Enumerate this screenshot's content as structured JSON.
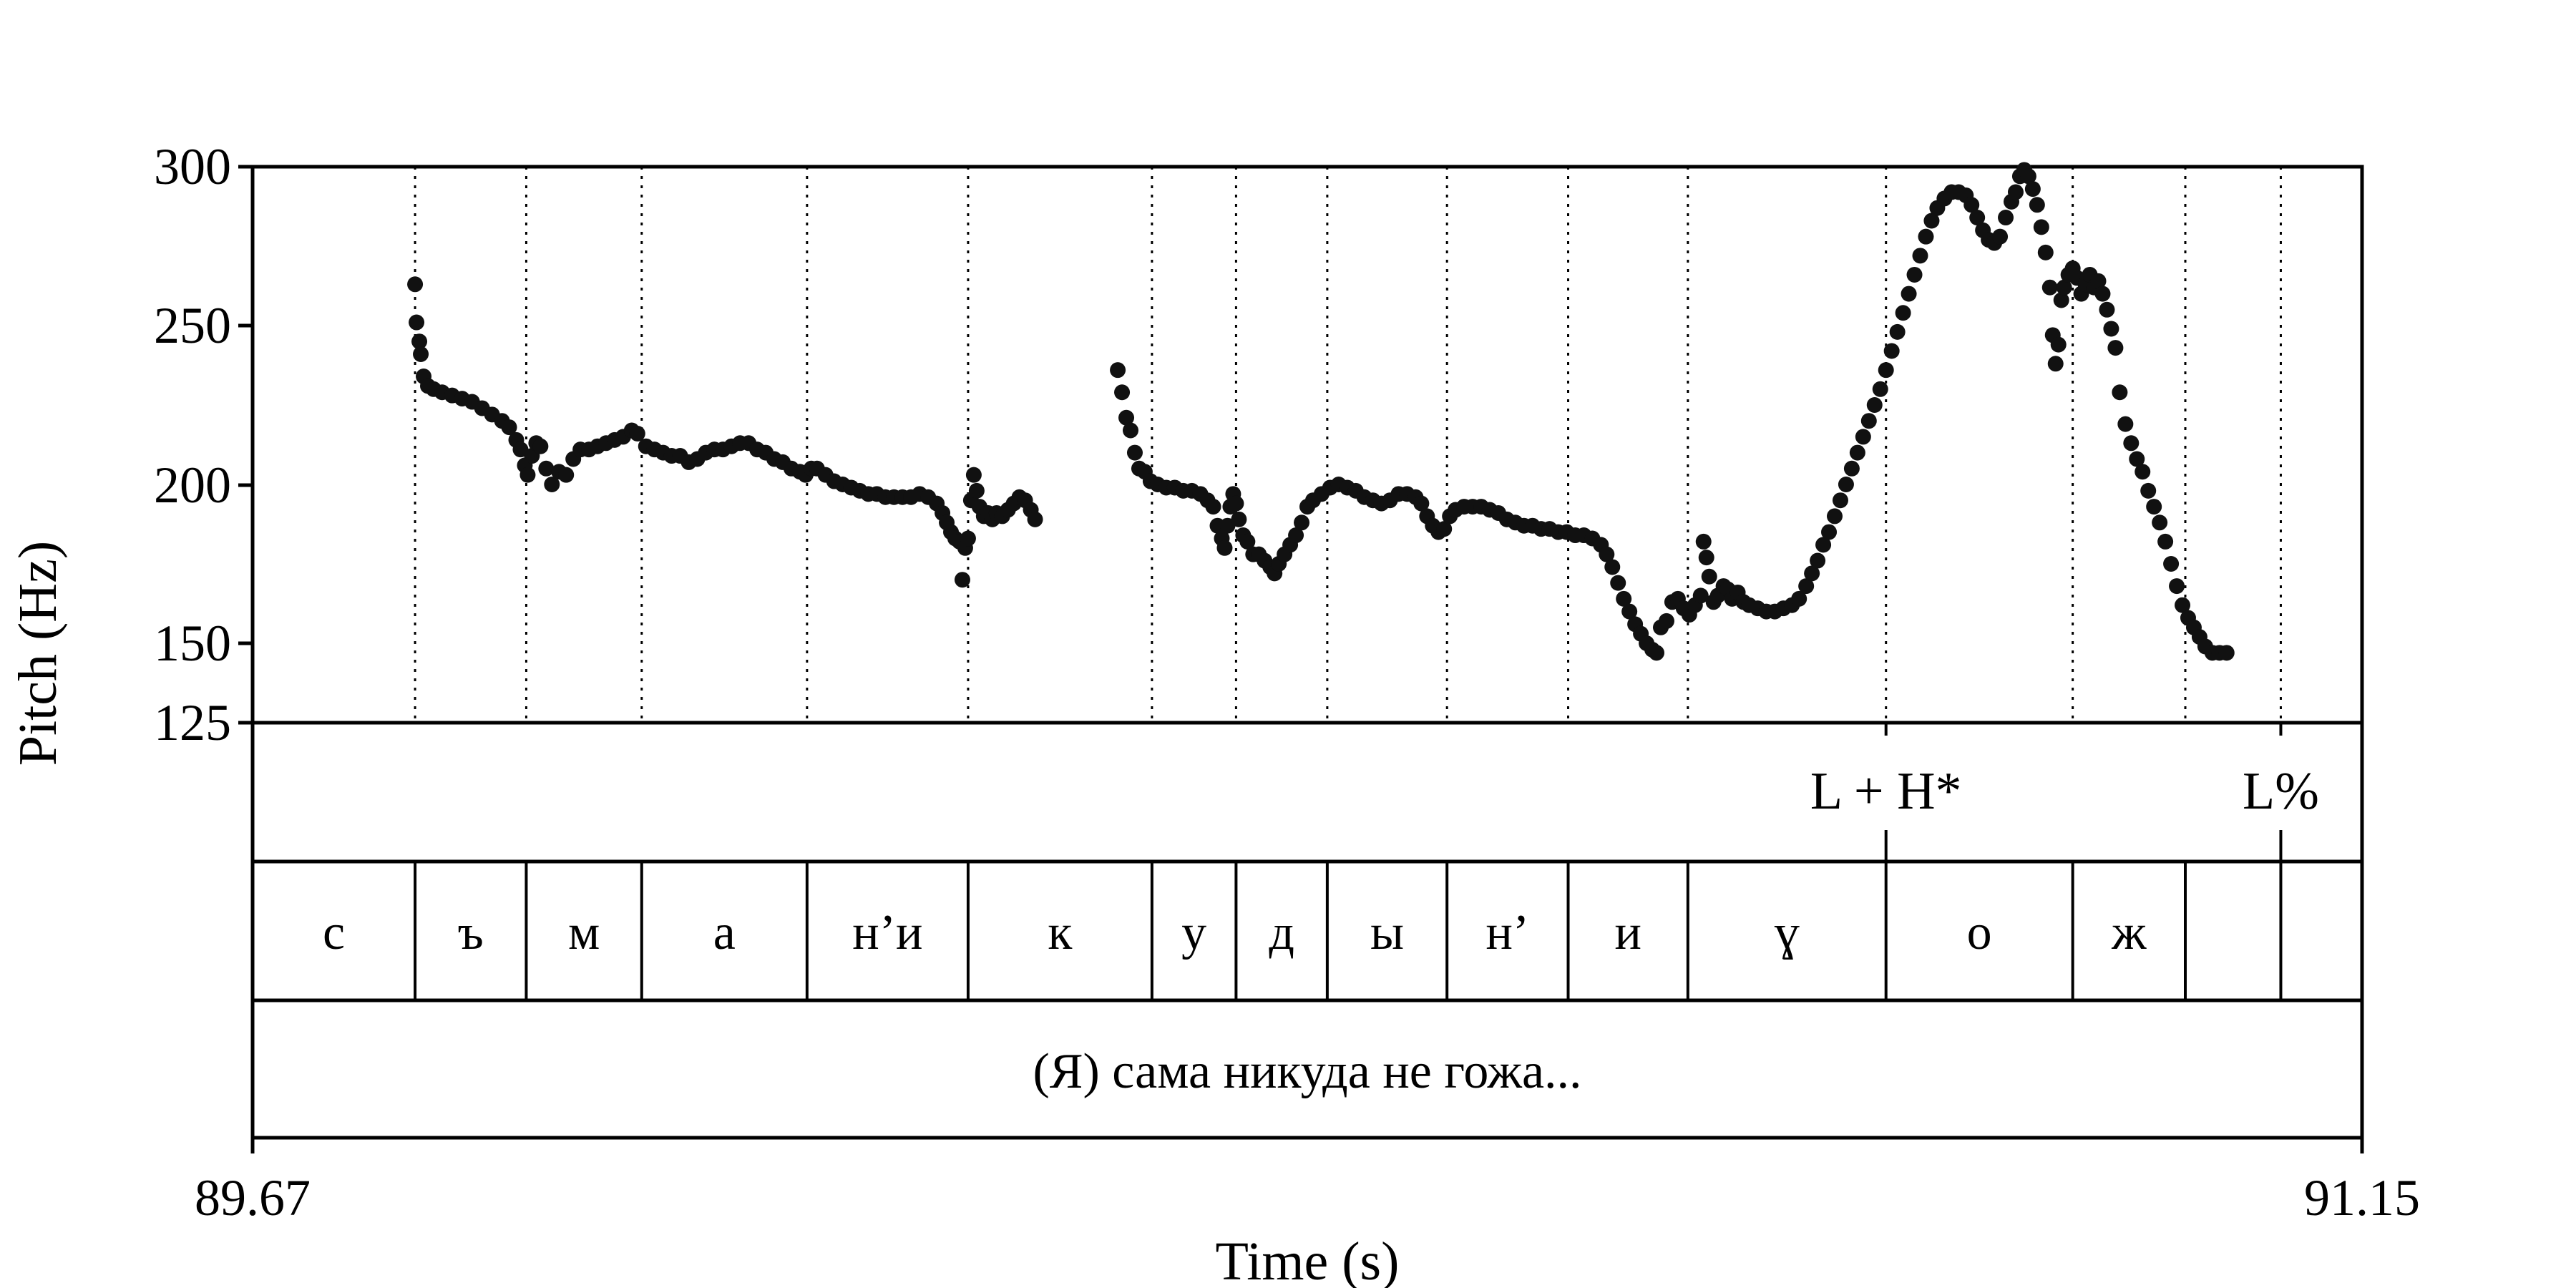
{
  "chart_data": {
    "type": "scatter",
    "xlabel": "Time (s)",
    "ylabel": "Pitch (Hz)",
    "xlim": [
      89.67,
      91.15
    ],
    "ylim": [
      125,
      300
    ],
    "x_tick_labels": [
      "89.67",
      "91.15"
    ],
    "y_ticks": [
      125,
      150,
      200,
      250,
      300
    ],
    "y_tick_labels": [
      "125",
      "150",
      "200",
      "250",
      "300"
    ],
    "grid": "dotted vertical lines at segment boundaries",
    "marker_color": "#111111",
    "segment_boundaries": [
      89.784,
      89.862,
      89.943,
      90.059,
      90.172,
      90.301,
      90.36,
      90.424,
      90.508,
      90.593,
      90.677,
      90.816,
      90.947,
      91.026,
      91.093
    ],
    "tones": [
      {
        "label": "L + H*",
        "time": 90.816
      },
      {
        "label": "L%",
        "time": 91.093
      }
    ],
    "segments": [
      {
        "label": "с",
        "start": 89.67,
        "end": 89.784
      },
      {
        "label": "ъ",
        "start": 89.784,
        "end": 89.862
      },
      {
        "label": "м",
        "start": 89.862,
        "end": 89.943
      },
      {
        "label": "а",
        "start": 89.943,
        "end": 90.059
      },
      {
        "label": "н’и",
        "start": 90.059,
        "end": 90.172
      },
      {
        "label": "к",
        "start": 90.172,
        "end": 90.301
      },
      {
        "label": "у",
        "start": 90.301,
        "end": 90.36
      },
      {
        "label": "д",
        "start": 90.36,
        "end": 90.424
      },
      {
        "label": "ы",
        "start": 90.424,
        "end": 90.508
      },
      {
        "label": "н’",
        "start": 90.508,
        "end": 90.593
      },
      {
        "label": "и",
        "start": 90.593,
        "end": 90.677
      },
      {
        "label": "ɣ",
        "start": 90.677,
        "end": 90.816
      },
      {
        "label": "о",
        "start": 90.816,
        "end": 90.947
      },
      {
        "label": "ж",
        "start": 90.947,
        "end": 91.026
      },
      {
        "label": "",
        "start": 91.026,
        "end": 91.093
      },
      {
        "label": "",
        "start": 91.093,
        "end": 91.15
      }
    ],
    "sentence": "(Я) сама никуда не гожа...",
    "series": [
      {
        "points": [
          [
            89.784,
            263
          ],
          [
            89.785,
            251
          ],
          [
            89.787,
            245
          ],
          [
            89.788,
            241
          ],
          [
            89.79,
            234
          ],
          [
            89.793,
            231
          ],
          [
            89.797,
            230
          ],
          [
            89.803,
            229
          ],
          [
            89.81,
            228
          ],
          [
            89.817,
            227
          ],
          [
            89.824,
            226
          ],
          [
            89.831,
            224
          ],
          [
            89.838,
            222
          ],
          [
            89.845,
            220
          ],
          [
            89.85,
            218
          ],
          [
            89.855,
            214
          ],
          [
            89.858,
            211
          ],
          [
            89.861,
            206
          ],
          [
            89.863,
            203
          ],
          [
            89.866,
            209
          ],
          [
            89.869,
            213
          ],
          [
            89.872,
            212
          ],
          [
            89.876,
            205
          ],
          [
            89.88,
            200
          ],
          [
            89.885,
            204
          ],
          [
            89.89,
            203
          ],
          [
            89.895,
            208
          ],
          [
            89.9,
            211
          ],
          [
            89.906,
            211
          ],
          [
            89.912,
            212
          ],
          [
            89.918,
            213
          ],
          [
            89.924,
            214
          ],
          [
            89.93,
            215
          ],
          [
            89.936,
            217
          ],
          [
            89.94,
            216
          ],
          [
            89.946,
            212
          ],
          [
            89.952,
            211
          ],
          [
            89.958,
            210
          ],
          [
            89.964,
            209
          ],
          [
            89.97,
            209
          ],
          [
            89.976,
            207
          ],
          [
            89.982,
            208
          ],
          [
            89.988,
            210
          ],
          [
            89.994,
            211
          ],
          [
            90.0,
            211
          ],
          [
            90.006,
            212
          ],
          [
            90.012,
            213
          ],
          [
            90.018,
            213
          ],
          [
            90.024,
            211
          ],
          [
            90.03,
            210
          ],
          [
            90.036,
            208
          ],
          [
            90.042,
            207
          ],
          [
            90.048,
            205
          ],
          [
            90.054,
            204
          ],
          [
            90.058,
            203
          ],
          [
            90.062,
            205
          ],
          [
            90.066,
            205
          ],
          [
            90.072,
            203
          ],
          [
            90.078,
            201
          ],
          [
            90.084,
            200
          ],
          [
            90.09,
            199
          ],
          [
            90.096,
            198
          ],
          [
            90.102,
            197
          ],
          [
            90.108,
            197
          ],
          [
            90.114,
            196
          ],
          [
            90.12,
            196
          ],
          [
            90.126,
            196
          ],
          [
            90.132,
            196
          ],
          [
            90.138,
            197
          ],
          [
            90.144,
            196
          ],
          [
            90.15,
            194
          ],
          [
            90.154,
            191
          ],
          [
            90.157,
            188
          ],
          [
            90.16,
            185
          ],
          [
            90.163,
            183
          ],
          [
            90.166,
            182
          ],
          [
            90.168,
            170
          ],
          [
            90.17,
            180
          ],
          [
            90.172,
            183
          ],
          [
            90.174,
            195
          ],
          [
            90.176,
            203
          ],
          [
            90.178,
            198
          ],
          [
            90.18,
            193
          ],
          [
            90.183,
            190
          ],
          [
            90.186,
            191
          ],
          [
            90.189,
            189
          ],
          [
            90.192,
            191
          ],
          [
            90.196,
            190
          ],
          [
            90.2,
            192
          ],
          [
            90.204,
            194
          ],
          [
            90.208,
            196
          ],
          [
            90.212,
            195
          ],
          [
            90.216,
            192
          ],
          [
            90.219,
            189
          ],
          [
            90.277,
            236
          ],
          [
            90.28,
            229
          ],
          [
            90.283,
            221
          ],
          [
            90.286,
            217
          ],
          [
            90.289,
            210
          ],
          [
            90.292,
            205
          ],
          [
            90.296,
            204
          ],
          [
            90.3,
            201
          ],
          [
            90.305,
            200
          ],
          [
            90.311,
            199
          ],
          [
            90.317,
            199
          ],
          [
            90.323,
            198
          ],
          [
            90.329,
            198
          ],
          [
            90.335,
            197
          ],
          [
            90.34,
            195
          ],
          [
            90.344,
            193
          ],
          [
            90.347,
            187
          ],
          [
            90.35,
            183
          ],
          [
            90.352,
            180
          ],
          [
            90.354,
            187
          ],
          [
            90.356,
            193
          ],
          [
            90.358,
            197
          ],
          [
            90.36,
            194
          ],
          [
            90.362,
            189
          ],
          [
            90.365,
            184
          ],
          [
            90.368,
            182
          ],
          [
            90.372,
            178
          ],
          [
            90.376,
            178
          ],
          [
            90.38,
            176
          ],
          [
            90.384,
            174
          ],
          [
            90.387,
            172
          ],
          [
            90.39,
            175
          ],
          [
            90.394,
            178
          ],
          [
            90.398,
            181
          ],
          [
            90.402,
            184
          ],
          [
            90.406,
            188
          ],
          [
            90.41,
            193
          ],
          [
            90.414,
            195
          ],
          [
            90.42,
            197
          ],
          [
            90.426,
            199
          ],
          [
            90.432,
            200
          ],
          [
            90.438,
            199
          ],
          [
            90.444,
            198
          ],
          [
            90.45,
            196
          ],
          [
            90.456,
            195
          ],
          [
            90.462,
            194
          ],
          [
            90.468,
            195
          ],
          [
            90.474,
            197
          ],
          [
            90.48,
            197
          ],
          [
            90.486,
            196
          ],
          [
            90.49,
            194
          ],
          [
            90.494,
            190
          ],
          [
            90.498,
            187
          ],
          [
            90.502,
            185
          ],
          [
            90.506,
            186
          ],
          [
            90.51,
            190
          ],
          [
            90.514,
            192
          ],
          [
            90.52,
            193
          ],
          [
            90.526,
            193
          ],
          [
            90.532,
            193
          ],
          [
            90.538,
            192
          ],
          [
            90.544,
            191
          ],
          [
            90.55,
            189
          ],
          [
            90.556,
            188
          ],
          [
            90.562,
            187
          ],
          [
            90.568,
            187
          ],
          [
            90.574,
            186
          ],
          [
            90.58,
            186
          ],
          [
            90.586,
            185
          ],
          [
            90.592,
            185
          ],
          [
            90.598,
            184
          ],
          [
            90.604,
            184
          ],
          [
            90.61,
            183
          ],
          [
            90.616,
            181
          ],
          [
            90.62,
            178
          ],
          [
            90.624,
            174
          ],
          [
            90.628,
            169
          ],
          [
            90.632,
            164
          ],
          [
            90.636,
            160
          ],
          [
            90.64,
            156
          ],
          [
            90.644,
            153
          ],
          [
            90.648,
            150
          ],
          [
            90.652,
            148
          ],
          [
            90.655,
            147
          ],
          [
            90.658,
            155
          ],
          [
            90.662,
            157
          ],
          [
            90.666,
            163
          ],
          [
            90.67,
            164
          ],
          [
            90.674,
            161
          ],
          [
            90.678,
            159
          ],
          [
            90.682,
            162
          ],
          [
            90.686,
            165
          ],
          [
            90.688,
            182
          ],
          [
            90.69,
            177
          ],
          [
            90.692,
            171
          ],
          [
            90.695,
            163
          ],
          [
            90.698,
            165
          ],
          [
            90.702,
            168
          ],
          [
            90.705,
            167
          ],
          [
            90.708,
            164
          ],
          [
            90.712,
            166
          ],
          [
            90.716,
            163
          ],
          [
            90.72,
            162
          ],
          [
            90.726,
            161
          ],
          [
            90.732,
            160
          ],
          [
            90.738,
            160
          ],
          [
            90.744,
            161
          ],
          [
            90.75,
            162
          ],
          [
            90.755,
            164
          ],
          [
            90.76,
            168
          ],
          [
            90.764,
            172
          ],
          [
            90.768,
            176
          ],
          [
            90.772,
            181
          ],
          [
            90.776,
            185
          ],
          [
            90.78,
            190
          ],
          [
            90.784,
            195
          ],
          [
            90.788,
            200
          ],
          [
            90.792,
            205
          ],
          [
            90.796,
            210
          ],
          [
            90.8,
            215
          ],
          [
            90.804,
            220
          ],
          [
            90.808,
            225
          ],
          [
            90.812,
            230
          ],
          [
            90.816,
            236
          ],
          [
            90.82,
            242
          ],
          [
            90.824,
            248
          ],
          [
            90.828,
            254
          ],
          [
            90.832,
            260
          ],
          [
            90.836,
            266
          ],
          [
            90.84,
            272
          ],
          [
            90.844,
            278
          ],
          [
            90.848,
            283
          ],
          [
            90.852,
            287
          ],
          [
            90.857,
            290
          ],
          [
            90.862,
            292
          ],
          [
            90.867,
            292
          ],
          [
            90.872,
            291
          ],
          [
            90.876,
            288
          ],
          [
            90.88,
            284
          ],
          [
            90.884,
            280
          ],
          [
            90.888,
            277
          ],
          [
            90.892,
            276
          ],
          [
            90.896,
            278
          ],
          [
            90.9,
            284
          ],
          [
            90.904,
            289
          ],
          [
            90.907,
            292
          ],
          [
            90.91,
            297
          ],
          [
            90.913,
            299
          ],
          [
            90.916,
            297
          ],
          [
            90.919,
            293
          ],
          [
            90.922,
            288
          ],
          [
            90.925,
            281
          ],
          [
            90.928,
            273
          ],
          [
            90.931,
            262
          ],
          [
            90.933,
            247
          ],
          [
            90.935,
            238
          ],
          [
            90.937,
            244
          ],
          [
            90.939,
            258
          ],
          [
            90.941,
            262
          ],
          [
            90.944,
            266
          ],
          [
            90.947,
            268
          ],
          [
            90.95,
            265
          ],
          [
            90.953,
            260
          ],
          [
            90.956,
            263
          ],
          [
            90.959,
            266
          ],
          [
            90.962,
            262
          ],
          [
            90.965,
            264
          ],
          [
            90.968,
            260
          ],
          [
            90.971,
            255
          ],
          [
            90.974,
            249
          ],
          [
            90.977,
            243
          ],
          [
            90.98,
            229
          ],
          [
            90.984,
            219
          ],
          [
            90.988,
            213
          ],
          [
            90.992,
            208
          ],
          [
            90.996,
            204
          ],
          [
            91.0,
            198
          ],
          [
            91.004,
            193
          ],
          [
            91.008,
            188
          ],
          [
            91.012,
            182
          ],
          [
            91.016,
            175
          ],
          [
            91.02,
            168
          ],
          [
            91.024,
            162
          ],
          [
            91.028,
            158
          ],
          [
            91.032,
            155
          ],
          [
            91.036,
            152
          ],
          [
            91.04,
            149
          ],
          [
            91.045,
            147
          ],
          [
            91.05,
            147
          ],
          [
            91.055,
            147
          ]
        ]
      }
    ]
  }
}
